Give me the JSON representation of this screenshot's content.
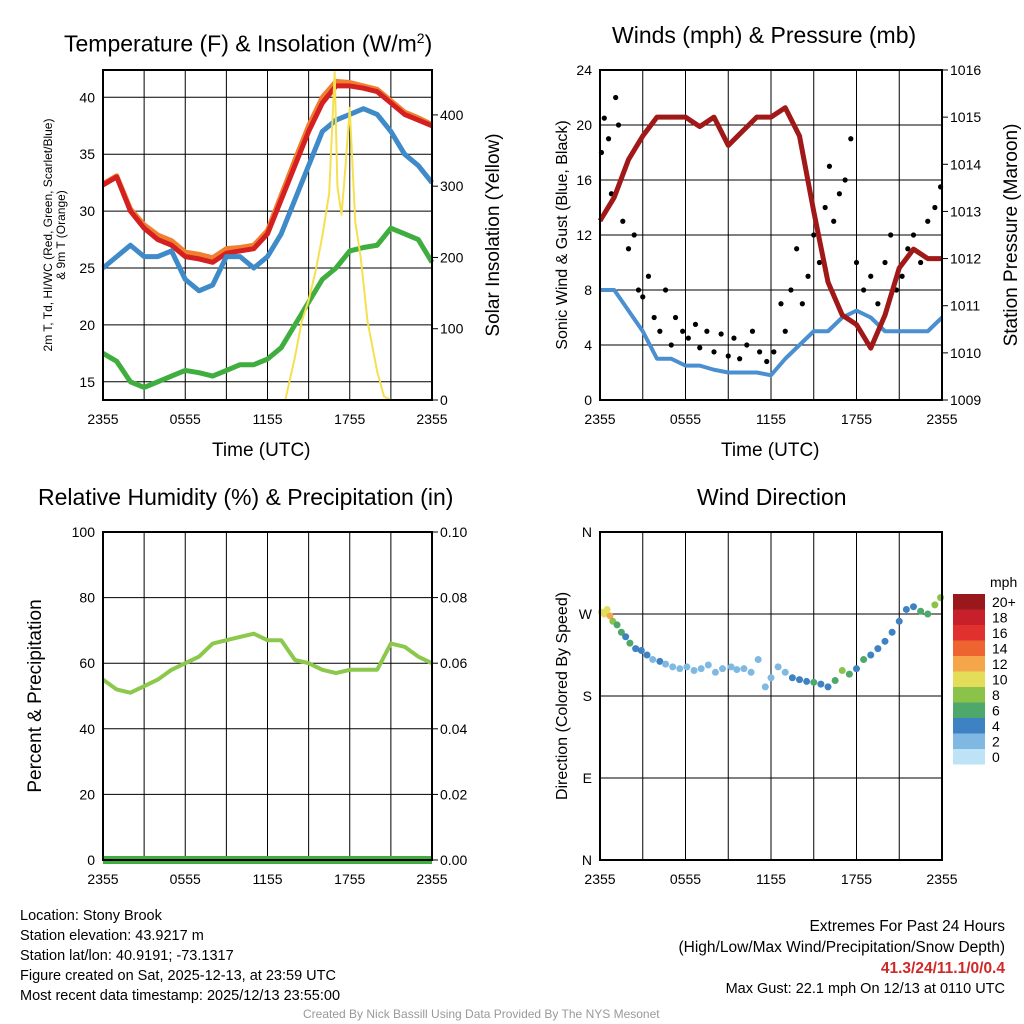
{
  "chart_data": [
    {
      "type": "line",
      "title": "Temperature (F) & Insolation (W/m2)",
      "title_main": "Temperature (F) & Insolation (W/m",
      "title_sup": "2",
      "title_end": ")",
      "xlabel": "Time (UTC)",
      "ylabel_line1": "2m T, Td, HI/WC (Red, Green, Scarlet/Blue)",
      "ylabel_line2": "& 9m T (Orange)",
      "y2label": "Solar Insolation (Yellow)",
      "xticks": [
        "2355",
        "0555",
        "1155",
        "1755",
        "2355"
      ],
      "ylim": [
        13.4,
        42.4
      ],
      "yticks": [
        15,
        20,
        25,
        30,
        35,
        40
      ],
      "y2lim": [
        0,
        463
      ],
      "y2ticks": [
        0,
        100,
        200,
        300,
        400
      ],
      "x": [
        0,
        1,
        2,
        3,
        4,
        5,
        6,
        7,
        8,
        9,
        10,
        11,
        12,
        13,
        14,
        15,
        16,
        17,
        18,
        19,
        20,
        21,
        22,
        23,
        24
      ],
      "series": [
        {
          "name": "9m T",
          "color": "#f08030",
          "axis": "left",
          "values": [
            32.4,
            33.1,
            30.2,
            28.8,
            27.9,
            27.4,
            26.4,
            26.2,
            25.9,
            26.7,
            26.8,
            27.0,
            28.3,
            31.4,
            34.5,
            37.5,
            40.0,
            41.4,
            41.3,
            41.0,
            40.7,
            39.7,
            38.7,
            38.2,
            37.6
          ]
        },
        {
          "name": "2m T",
          "color": "#d42020",
          "axis": "left",
          "values": [
            32.3,
            33.0,
            30.0,
            28.5,
            27.5,
            27.0,
            26.0,
            25.8,
            25.5,
            26.3,
            26.5,
            26.7,
            28.0,
            31.0,
            34.0,
            37.0,
            39.5,
            41.0,
            41.0,
            40.8,
            40.5,
            39.5,
            38.5,
            38.0,
            37.5
          ]
        },
        {
          "name": "HI/WC",
          "color": "#3f8ac9",
          "axis": "left",
          "values": [
            25,
            26,
            27,
            26,
            26,
            26.5,
            24,
            23,
            23.5,
            26,
            26,
            25,
            26,
            28,
            31,
            34,
            37,
            38,
            38.5,
            39,
            38.5,
            37,
            35,
            34,
            32.5
          ]
        },
        {
          "name": "Td",
          "color": "#3fae3f",
          "axis": "left",
          "values": [
            17.5,
            16.8,
            15,
            14.5,
            15,
            15.5,
            16,
            15.8,
            15.5,
            16,
            16.5,
            16.5,
            17,
            18,
            20,
            22,
            24,
            25,
            26.5,
            26.8,
            27,
            28.5,
            28,
            27.5,
            25.5
          ]
        },
        {
          "name": "Solar",
          "color": "#f5e050",
          "axis": "right",
          "x": [
            0,
            13.3,
            14,
            14.5,
            15,
            15.5,
            16,
            16.5,
            16.9,
            17.1,
            17.4,
            17.7,
            18,
            18.4,
            18.8,
            19.3,
            20,
            20.5,
            21,
            24
          ],
          "values": [
            0,
            0,
            60,
            110,
            140,
            180,
            230,
            290,
            460,
            300,
            260,
            330,
            410,
            250,
            200,
            110,
            40,
            5,
            0,
            0
          ]
        }
      ]
    },
    {
      "type": "line",
      "title": "Winds (mph) & Pressure (mb)",
      "xlabel": "Time (UTC)",
      "ylabel": "Sonic Wind & Gust (Blue, Black)",
      "y2label": "Station Pressure (Maroon)",
      "xticks": [
        "2355",
        "0555",
        "1155",
        "1755",
        "2355"
      ],
      "ylim": [
        0,
        24
      ],
      "yticks": [
        0,
        4,
        8,
        12,
        16,
        20,
        24
      ],
      "y2lim": [
        1009,
        1016
      ],
      "y2ticks": [
        1009,
        1010,
        1011,
        1012,
        1013,
        1014,
        1015,
        1016
      ],
      "x": [
        0,
        1,
        2,
        3,
        4,
        5,
        6,
        7,
        8,
        9,
        10,
        11,
        12,
        13,
        14,
        15,
        16,
        17,
        18,
        19,
        20,
        21,
        22,
        23,
        24
      ],
      "wind": {
        "name": "Sonic Wind",
        "color": "#4a8fd0",
        "values": [
          8,
          8,
          6.5,
          5,
          3,
          3,
          2.5,
          2.5,
          2.2,
          2,
          2,
          2,
          1.8,
          3,
          4,
          5,
          5,
          6,
          6.5,
          6,
          5,
          5,
          5,
          5,
          6
        ]
      },
      "pressure": {
        "name": "Station Pressure",
        "color": "#a01818",
        "values": [
          1012.8,
          1013.3,
          1014.1,
          1014.6,
          1015,
          1015,
          1015,
          1014.8,
          1015,
          1014.4,
          1014.7,
          1015,
          1015,
          1015.2,
          1014.6,
          1013,
          1011.5,
          1010.8,
          1010.6,
          1010.1,
          1010.8,
          1011.8,
          1012.2,
          1012,
          1012
        ]
      },
      "gust": {
        "name": "Gust",
        "color": "#000000",
        "points": [
          [
            0.1,
            18
          ],
          [
            0.3,
            20.5
          ],
          [
            0.6,
            19
          ],
          [
            0.8,
            15
          ],
          [
            1.1,
            22
          ],
          [
            1.3,
            20
          ],
          [
            1.6,
            13
          ],
          [
            2,
            11
          ],
          [
            2.4,
            12
          ],
          [
            2.7,
            8
          ],
          [
            3,
            7.5
          ],
          [
            3.4,
            9
          ],
          [
            3.8,
            6
          ],
          [
            4.2,
            5
          ],
          [
            4.6,
            8
          ],
          [
            5,
            4
          ],
          [
            5.3,
            6
          ],
          [
            5.8,
            5
          ],
          [
            6.2,
            4.5
          ],
          [
            6.7,
            5.5
          ],
          [
            7,
            3.8
          ],
          [
            7.5,
            5
          ],
          [
            8,
            3.5
          ],
          [
            8.5,
            4.8
          ],
          [
            9,
            3.2
          ],
          [
            9.4,
            4.5
          ],
          [
            9.8,
            3
          ],
          [
            10.3,
            4
          ],
          [
            10.7,
            5
          ],
          [
            11.2,
            3.5
          ],
          [
            11.7,
            2.8
          ],
          [
            12.2,
            3.5
          ],
          [
            12.7,
            7
          ],
          [
            13,
            5
          ],
          [
            13.4,
            8
          ],
          [
            13.8,
            11
          ],
          [
            14.2,
            7
          ],
          [
            14.6,
            9
          ],
          [
            15,
            12
          ],
          [
            15.4,
            10
          ],
          [
            15.8,
            14
          ],
          [
            16.1,
            17
          ],
          [
            16.4,
            13
          ],
          [
            16.8,
            15
          ],
          [
            17.2,
            16
          ],
          [
            17.6,
            19
          ],
          [
            18,
            10
          ],
          [
            18.5,
            8
          ],
          [
            19,
            9
          ],
          [
            19.5,
            7
          ],
          [
            20,
            10
          ],
          [
            20.4,
            12
          ],
          [
            20.8,
            8
          ],
          [
            21.2,
            9
          ],
          [
            21.6,
            11
          ],
          [
            22,
            12
          ],
          [
            22.5,
            10
          ],
          [
            23,
            13
          ],
          [
            23.5,
            14
          ],
          [
            23.9,
            15.5
          ]
        ]
      }
    },
    {
      "type": "line",
      "title": "Relative Humidity (%) & Precipitation (in)",
      "ylabel": "Percent & Precipitation",
      "xticks": [
        "2355",
        "0555",
        "1155",
        "1755",
        "2355"
      ],
      "ylim": [
        0,
        100
      ],
      "yticks": [
        0,
        20,
        40,
        60,
        80,
        100
      ],
      "y2lim": [
        0,
        0.1
      ],
      "y2ticks": [
        "0.00",
        "0.02",
        "0.04",
        "0.06",
        "0.08",
        "0.10"
      ],
      "x": [
        0,
        1,
        2,
        3,
        4,
        5,
        6,
        7,
        8,
        9,
        10,
        11,
        12,
        13,
        14,
        15,
        16,
        17,
        18,
        19,
        20,
        21,
        22,
        23,
        24
      ],
      "rh": {
        "name": "Relative Humidity",
        "color": "#8cc84b",
        "values": [
          55,
          52,
          51,
          53,
          55,
          58,
          60,
          62,
          66,
          67,
          68,
          69,
          67,
          67,
          61,
          60,
          58,
          57,
          58,
          58,
          58,
          66,
          65,
          62,
          60
        ]
      },
      "precip": {
        "name": "Precipitation",
        "color": "#3fae3f",
        "values": [
          0,
          0,
          0,
          0,
          0,
          0,
          0,
          0,
          0,
          0,
          0,
          0,
          0,
          0,
          0,
          0,
          0,
          0,
          0,
          0,
          0,
          0,
          0,
          0,
          0
        ]
      }
    },
    {
      "type": "scatter",
      "title": "Wind Direction",
      "ylabel": "Direction (Colored By Speed)",
      "xticks": [
        "2355",
        "0555",
        "1155",
        "1755",
        "2355"
      ],
      "ylim": [
        0,
        360
      ],
      "yticks": [
        {
          "v": 0,
          "l": "N"
        },
        {
          "v": 90,
          "l": "E"
        },
        {
          "v": 180,
          "l": "S"
        },
        {
          "v": 270,
          "l": "W"
        },
        {
          "v": 360,
          "l": "N"
        }
      ],
      "colorbar": {
        "title": "mph",
        "labels": [
          "20+",
          "18",
          "16",
          "14",
          "12",
          "10",
          "8",
          "6",
          "4",
          "2",
          "0"
        ],
        "colors": [
          "#99181c",
          "#c8202a",
          "#e0312e",
          "#ee6430",
          "#f6a64a",
          "#e3dd5a",
          "#8bc34a",
          "#4ea86b",
          "#3e82c3",
          "#7fb9e2",
          "#bfe3f6"
        ]
      },
      "points": [
        [
          0.1,
          272,
          9
        ],
        [
          0.3,
          270,
          10
        ],
        [
          0.5,
          275,
          9
        ],
        [
          0.7,
          268,
          11
        ],
        [
          0.9,
          262,
          7
        ],
        [
          1.2,
          258,
          6
        ],
        [
          1.5,
          250,
          5
        ],
        [
          1.8,
          245,
          4
        ],
        [
          2.1,
          238,
          5
        ],
        [
          2.5,
          232,
          3
        ],
        [
          2.9,
          230,
          4
        ],
        [
          3.3,
          225,
          3
        ],
        [
          3.7,
          220,
          2
        ],
        [
          4.2,
          218,
          3
        ],
        [
          4.6,
          215,
          2
        ],
        [
          5.1,
          212,
          2
        ],
        [
          5.6,
          210,
          2
        ],
        [
          6.1,
          212,
          2
        ],
        [
          6.6,
          208,
          2
        ],
        [
          7.1,
          210,
          2
        ],
        [
          7.6,
          214,
          2
        ],
        [
          8.1,
          206,
          2
        ],
        [
          8.6,
          210,
          2
        ],
        [
          9.2,
          212,
          2
        ],
        [
          9.6,
          209,
          1
        ],
        [
          10.1,
          210,
          2
        ],
        [
          10.6,
          206,
          1
        ],
        [
          11.1,
          220,
          1
        ],
        [
          11.6,
          190,
          2
        ],
        [
          12,
          200,
          1
        ],
        [
          12.5,
          212,
          2
        ],
        [
          13,
          206,
          2
        ],
        [
          13.5,
          200,
          3
        ],
        [
          14,
          198,
          3
        ],
        [
          14.5,
          196,
          4
        ],
        [
          15,
          195,
          6
        ],
        [
          15.5,
          193,
          4
        ],
        [
          16,
          190,
          3
        ],
        [
          16.5,
          197,
          6
        ],
        [
          17,
          208,
          7
        ],
        [
          17.5,
          204,
          5
        ],
        [
          18,
          210,
          3
        ],
        [
          18.5,
          220,
          6
        ],
        [
          19,
          225,
          4
        ],
        [
          19.5,
          232,
          3
        ],
        [
          20,
          240,
          3
        ],
        [
          20.5,
          250,
          4
        ],
        [
          21,
          262,
          4
        ],
        [
          21.5,
          275,
          4
        ],
        [
          22,
          278,
          3
        ],
        [
          22.5,
          273,
          5
        ],
        [
          23,
          270,
          6
        ],
        [
          23.5,
          280,
          7
        ],
        [
          23.9,
          288,
          7
        ]
      ]
    }
  ],
  "footer": {
    "location": "Location: Stony Brook",
    "elevation": "Station elevation: 43.9217 m",
    "latlon": "Station lat/lon: 40.9191; -73.1317",
    "created": "Figure created on Sat, 2025-12-13, at 23:59 UTC",
    "recent": "Most recent data timestamp: 2025/12/13 23:55:00",
    "extremes_title": "Extremes For Past 24 Hours",
    "extremes_sub": "(High/Low/Max Wind/Precipitation/Snow Depth)",
    "extremes_values": "41.3/24/11.1/0/0.4",
    "max_gust": "Max Gust: 22.1 mph On 12/13 at 0110 UTC",
    "credit": "Created By Nick Bassill Using Data Provided By The NYS Mesonet"
  }
}
